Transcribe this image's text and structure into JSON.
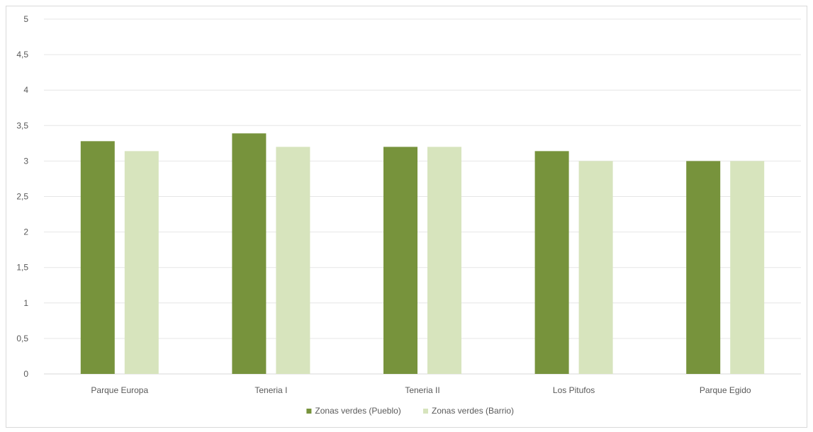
{
  "chart_data": {
    "type": "bar",
    "categories": [
      "Parque Europa",
      "Teneria I",
      "Teneria II",
      "Los Pitufos",
      "Parque Egido"
    ],
    "series": [
      {
        "name": "Zonas verdes (Pueblo)",
        "color": "#77933c",
        "values": [
          3.28,
          3.39,
          3.2,
          3.14,
          3.0
        ]
      },
      {
        "name": "Zonas verdes (Barrio)",
        "color": "#d7e4bd",
        "values": [
          3.14,
          3.2,
          3.2,
          3.0,
          3.0
        ]
      }
    ],
    "y_ticks": [
      "0",
      "0,5",
      "1",
      "1,5",
      "2",
      "2,5",
      "3",
      "3,5",
      "4",
      "4,5",
      "5"
    ],
    "ylim": [
      0,
      5
    ],
    "grid": true,
    "legend_position": "bottom"
  }
}
